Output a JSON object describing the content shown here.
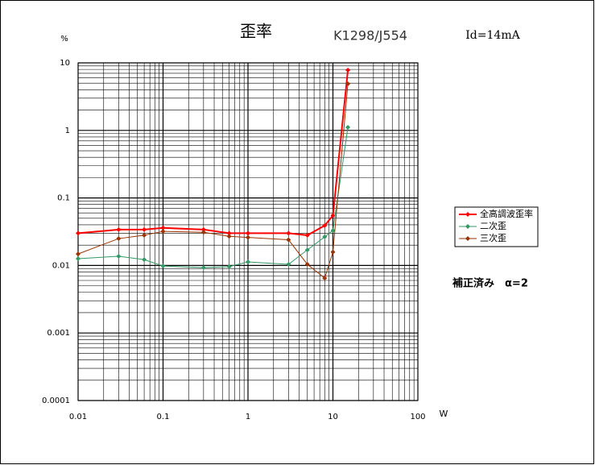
{
  "chart_data": {
    "type": "line",
    "title": "歪率",
    "subtitle": "K1298/J554",
    "annotations": [
      "Id=14mA",
      "補正済み　α=2"
    ],
    "x_label": "W",
    "y_label": "%",
    "x": [
      0.01,
      0.03,
      0.06,
      0.1,
      0.3,
      0.6,
      1,
      3,
      5,
      8,
      10,
      15
    ],
    "series": [
      {
        "name": "全高調波歪率",
        "color": "#ff0000",
        "values": [
          0.03,
          0.034,
          0.034,
          0.036,
          0.034,
          0.03,
          0.03,
          0.03,
          0.028,
          0.039,
          0.055,
          7.8
        ]
      },
      {
        "name": "二次歪",
        "color": "#339966",
        "values": [
          0.0126,
          0.0137,
          0.0122,
          0.0098,
          0.0093,
          0.0096,
          0.0113,
          0.0104,
          0.017,
          0.0265,
          0.033,
          1.11
        ]
      },
      {
        "name": "三次歪",
        "color": "#993300",
        "values": [
          0.0148,
          0.025,
          0.028,
          0.032,
          0.031,
          0.027,
          0.026,
          0.024,
          0.0104,
          0.0065,
          0.0158,
          4.9
        ]
      }
    ],
    "xlim": [
      0.01,
      100
    ],
    "xticks": [
      0.01,
      0.1,
      1,
      10,
      100
    ],
    "ylim": [
      0.0001,
      10
    ],
    "yticks": [
      0.0001,
      0.001,
      0.01,
      0.1,
      1,
      10
    ],
    "xscale": "log",
    "yscale": "log",
    "grid": true,
    "legend": "right"
  }
}
